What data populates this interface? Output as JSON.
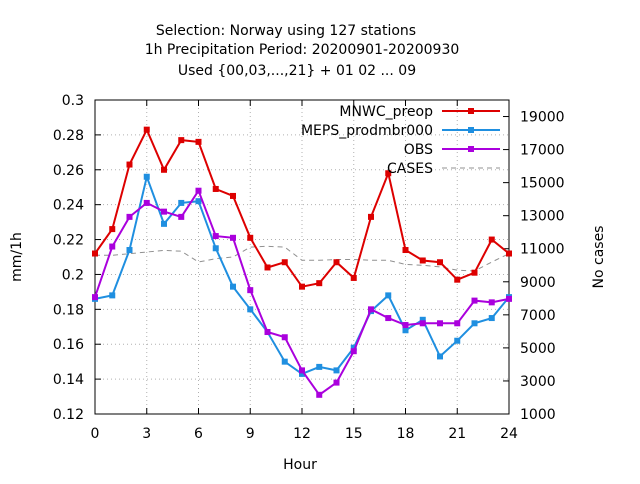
{
  "title": {
    "line1": "Selection: Norway using   127 stations",
    "line2": "1h Precipitation    Period: 20200901-20200930",
    "line3": "Used {00,03,...,21} + 01 02 ... 09"
  },
  "chart_data": {
    "type": "line",
    "xlabel": "Hour",
    "ylabel": "mm/1h",
    "y2label": "No cases",
    "xlim": [
      0,
      24
    ],
    "ylim": [
      0.12,
      0.3
    ],
    "y2lim": [
      1000,
      20000
    ],
    "xticks": [
      0,
      3,
      6,
      9,
      12,
      15,
      18,
      21,
      24
    ],
    "yticks": [
      "0.12",
      "0.14",
      "0.16",
      "0.18",
      "0.2",
      "0.22",
      "0.24",
      "0.26",
      "0.28",
      "0.3"
    ],
    "y2ticks": [
      "1000",
      "3000",
      "5000",
      "7000",
      "9000",
      "11000",
      "13000",
      "15000",
      "17000",
      "19000"
    ],
    "legend_position": "top-right",
    "x": [
      0,
      1,
      2,
      3,
      4,
      5,
      6,
      7,
      8,
      9,
      10,
      11,
      12,
      13,
      14,
      15,
      16,
      17,
      18,
      19,
      20,
      21,
      22,
      23,
      24
    ],
    "series": [
      {
        "name": "MNWC_preop",
        "axis": "left",
        "color": "#dd0000",
        "marker": "square",
        "values": [
          0.212,
          0.226,
          0.263,
          0.283,
          0.26,
          0.277,
          0.276,
          0.249,
          0.245,
          0.221,
          0.204,
          0.207,
          0.193,
          0.195,
          0.207,
          0.198,
          0.233,
          0.258,
          0.214,
          0.208,
          0.207,
          0.197,
          0.201,
          0.22,
          0.212
        ]
      },
      {
        "name": "MEPS_prodmbr000",
        "axis": "left",
        "color": "#1f8fe0",
        "marker": "square",
        "values": [
          0.186,
          0.188,
          0.214,
          0.256,
          0.229,
          0.241,
          0.242,
          0.215,
          0.193,
          0.18,
          0.167,
          0.15,
          0.143,
          0.147,
          0.145,
          0.158,
          0.179,
          0.188,
          0.168,
          0.174,
          0.153,
          0.162,
          0.172,
          0.175,
          0.187
        ]
      },
      {
        "name": "OBS",
        "axis": "left",
        "color": "#aa00dd",
        "marker": "square",
        "values": [
          0.187,
          0.216,
          0.233,
          0.241,
          0.236,
          0.233,
          0.248,
          0.222,
          0.221,
          0.191,
          0.167,
          0.164,
          0.145,
          0.131,
          0.138,
          0.156,
          0.18,
          0.175,
          0.171,
          0.172,
          0.172,
          0.172,
          0.185,
          0.184,
          0.186
        ]
      },
      {
        "name": "CASES",
        "axis": "right",
        "color": "#909090",
        "dashed": true,
        "values": [
          10600,
          10600,
          10700,
          10800,
          10900,
          10850,
          10200,
          10400,
          10500,
          11100,
          11150,
          11100,
          10300,
          10300,
          10350,
          10350,
          10300,
          10300,
          10050,
          10000,
          9900,
          9700,
          9650,
          10200,
          10700
        ]
      }
    ]
  }
}
